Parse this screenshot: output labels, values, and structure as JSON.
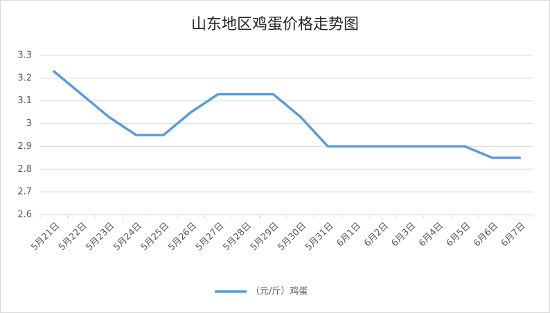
{
  "chart_data": {
    "type": "line",
    "title": "山东地区鸡蛋价格走势图",
    "categories": [
      "5月21日",
      "5月22日",
      "5月23日",
      "5月24日",
      "5月25日",
      "5月26日",
      "5月27日",
      "5月28日",
      "5月29日",
      "5月30日",
      "5月31日",
      "6月1日",
      "6月2日",
      "6月3日",
      "6月4日",
      "6月5日",
      "6月6日",
      "6月7日"
    ],
    "series": [
      {
        "name": "（元/斤）鸡蛋",
        "color": "#5b9bd5",
        "values": [
          3.23,
          3.13,
          3.03,
          2.95,
          2.95,
          3.05,
          3.13,
          3.13,
          3.13,
          3.03,
          2.9,
          2.9,
          2.9,
          2.9,
          2.9,
          2.9,
          2.85,
          2.85
        ]
      }
    ],
    "ylim": [
      2.6,
      3.3
    ],
    "yticks": [
      2.6,
      2.7,
      2.8,
      2.9,
      3,
      3.1,
      3.2,
      3.3
    ],
    "grid": true,
    "legend": "bottom"
  }
}
